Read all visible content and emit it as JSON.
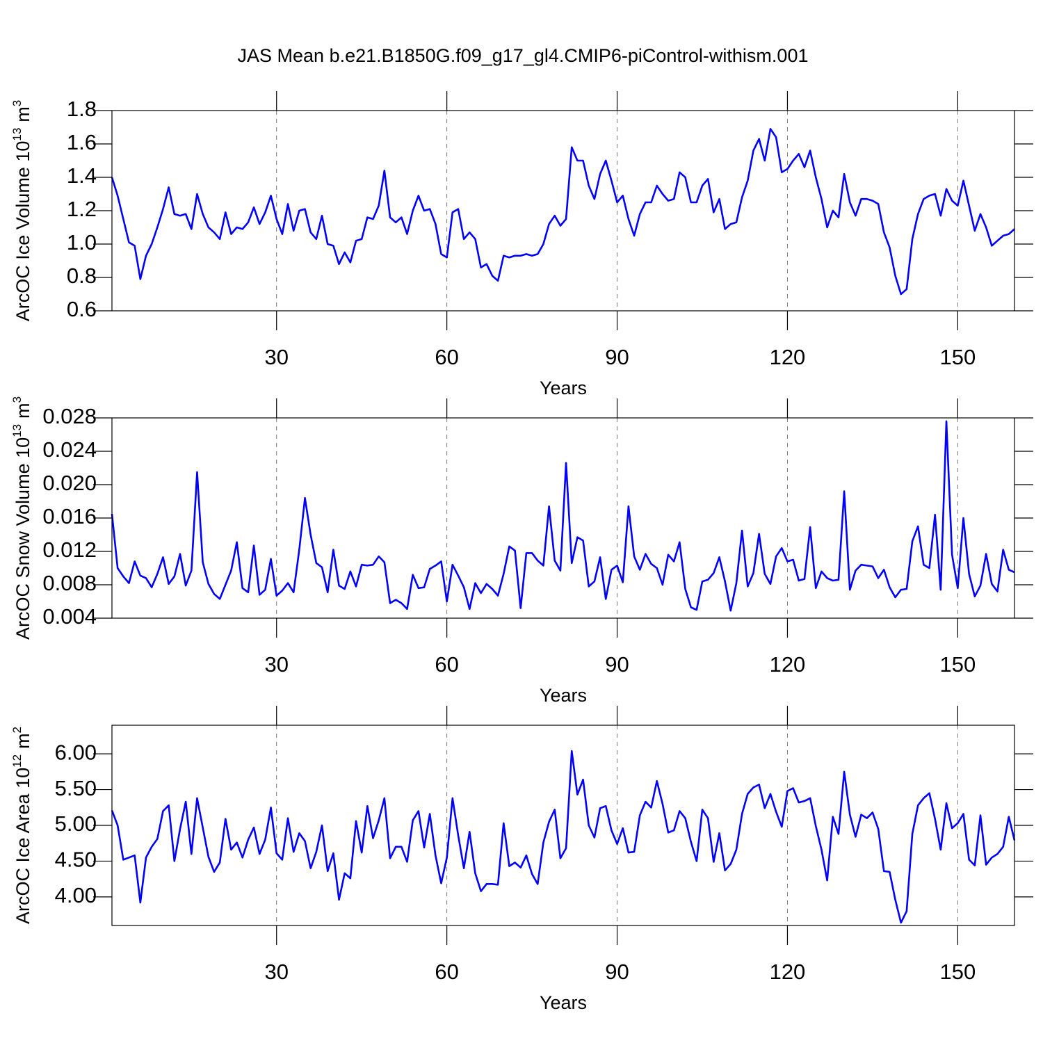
{
  "title": "JAS Mean b.e21.B1850G.f09_g17_gl4.CMIP6-piControl-withism.001",
  "chart_data": [
    {
      "type": "line",
      "xlabel": "Years",
      "ylabel": {
        "text": "ArcOC Ice Volume 10",
        "sup": "13",
        "unit": "m",
        "unit_sup": "3"
      },
      "xlim": [
        1,
        160
      ],
      "xticks": [
        30,
        60,
        90,
        120,
        150
      ],
      "ylim": [
        0.6,
        1.8
      ],
      "yticks": [
        1.8,
        1.6,
        1.4,
        1.2,
        {
          "value": 1.0,
          "label": "1.0"
        },
        0.8,
        0.6
      ],
      "grid": true,
      "color": "#0000ff",
      "x": [
        1,
        2,
        3,
        4,
        5,
        6,
        7,
        8,
        9,
        10,
        11,
        12,
        13,
        14,
        15,
        16,
        17,
        18,
        19,
        20,
        21,
        22,
        23,
        24,
        25,
        26,
        27,
        28,
        29,
        30,
        31,
        32,
        33,
        34,
        35,
        36,
        37,
        38,
        39,
        40,
        41,
        42,
        43,
        44,
        45,
        46,
        47,
        48,
        49,
        50,
        51,
        52,
        53,
        54,
        55,
        56,
        57,
        58,
        59,
        60,
        61,
        62,
        63,
        64,
        65,
        66,
        67,
        68,
        69,
        70,
        71,
        72,
        73,
        74,
        75,
        76,
        77,
        78,
        79,
        80,
        81,
        82,
        83,
        84,
        85,
        86,
        87,
        88,
        89,
        90,
        91,
        92,
        93,
        94,
        95,
        96,
        97,
        98,
        99,
        100,
        101,
        102,
        103,
        104,
        105,
        106,
        107,
        108,
        109,
        110,
        111,
        112,
        113,
        114,
        115,
        116,
        117,
        118,
        119,
        120,
        121,
        122,
        123,
        124,
        125,
        126,
        127,
        128,
        129,
        130,
        131,
        132,
        133,
        134,
        135,
        136,
        137,
        138,
        139,
        140,
        141,
        142,
        143,
        144,
        145,
        146,
        147,
        148,
        149,
        150,
        151,
        152,
        153,
        154,
        155,
        156,
        157,
        158,
        159,
        160
      ],
      "values": [
        1.4,
        1.29,
        1.15,
        1.01,
        0.99,
        0.79,
        0.93,
        1.0,
        1.1,
        1.21,
        1.34,
        1.18,
        1.17,
        1.18,
        1.09,
        1.3,
        1.18,
        1.1,
        1.07,
        1.03,
        1.19,
        1.06,
        1.1,
        1.09,
        1.13,
        1.22,
        1.12,
        1.19,
        1.29,
        1.15,
        1.06,
        1.24,
        1.08,
        1.2,
        1.21,
        1.07,
        1.03,
        1.17,
        1.0,
        0.99,
        0.88,
        0.95,
        0.89,
        1.02,
        1.03,
        1.16,
        1.15,
        1.23,
        1.44,
        1.16,
        1.13,
        1.16,
        1.06,
        1.2,
        1.29,
        1.2,
        1.21,
        1.12,
        0.94,
        0.92,
        1.19,
        1.21,
        1.03,
        1.07,
        1.03,
        0.86,
        0.88,
        0.81,
        0.78,
        0.93,
        0.92,
        0.93,
        0.93,
        0.94,
        0.93,
        0.94,
        1.0,
        1.12,
        1.17,
        1.11,
        1.15,
        1.58,
        1.5,
        1.5,
        1.35,
        1.27,
        1.42,
        1.5,
        1.38,
        1.25,
        1.29,
        1.15,
        1.05,
        1.18,
        1.25,
        1.25,
        1.35,
        1.3,
        1.26,
        1.27,
        1.43,
        1.4,
        1.25,
        1.25,
        1.35,
        1.39,
        1.19,
        1.27,
        1.09,
        1.12,
        1.13,
        1.28,
        1.38,
        1.56,
        1.63,
        1.5,
        1.69,
        1.64,
        1.43,
        1.45,
        1.5,
        1.54,
        1.46,
        1.56,
        1.4,
        1.27,
        1.1,
        1.2,
        1.16,
        1.42,
        1.25,
        1.17,
        1.27,
        1.27,
        1.26,
        1.24,
        1.07,
        0.98,
        0.81,
        0.7,
        0.73,
        1.03,
        1.18,
        1.27,
        1.29,
        1.3,
        1.17,
        1.33,
        1.26,
        1.23,
        1.38,
        1.23,
        1.08,
        1.18,
        1.1,
        0.99,
        1.02,
        1.05,
        1.06,
        1.09
      ]
    },
    {
      "type": "line",
      "xlabel": "Years",
      "ylabel": {
        "text": "ArcOC Snow Volume 10",
        "sup": "13",
        "unit": "m",
        "unit_sup": "3"
      },
      "xlim": [
        1,
        160
      ],
      "xticks": [
        30,
        60,
        90,
        120,
        150
      ],
      "ylim": [
        0.004,
        0.028
      ],
      "yticks": [
        0.028,
        0.024,
        {
          "value": 0.02,
          "label": "0.020"
        },
        0.016,
        0.012,
        0.008,
        0.004
      ],
      "grid": true,
      "color": "#0000ff",
      "x": [
        1,
        2,
        3,
        4,
        5,
        6,
        7,
        8,
        9,
        10,
        11,
        12,
        13,
        14,
        15,
        16,
        17,
        18,
        19,
        20,
        21,
        22,
        23,
        24,
        25,
        26,
        27,
        28,
        29,
        30,
        31,
        32,
        33,
        34,
        35,
        36,
        37,
        38,
        39,
        40,
        41,
        42,
        43,
        44,
        45,
        46,
        47,
        48,
        49,
        50,
        51,
        52,
        53,
        54,
        55,
        56,
        57,
        58,
        59,
        60,
        61,
        62,
        63,
        64,
        65,
        66,
        67,
        68,
        69,
        70,
        71,
        72,
        73,
        74,
        75,
        76,
        77,
        78,
        79,
        80,
        81,
        82,
        83,
        84,
        85,
        86,
        87,
        88,
        89,
        90,
        91,
        92,
        93,
        94,
        95,
        96,
        97,
        98,
        99,
        100,
        101,
        102,
        103,
        104,
        105,
        106,
        107,
        108,
        109,
        110,
        111,
        112,
        113,
        114,
        115,
        116,
        117,
        118,
        119,
        120,
        121,
        122,
        123,
        124,
        125,
        126,
        127,
        128,
        129,
        130,
        131,
        132,
        133,
        134,
        135,
        136,
        137,
        138,
        139,
        140,
        141,
        142,
        143,
        144,
        145,
        146,
        147,
        148,
        149,
        150,
        151,
        152,
        153,
        154,
        155,
        156,
        157,
        158,
        159,
        160
      ],
      "values": [
        0.0165,
        0.01,
        0.009,
        0.0082,
        0.0108,
        0.0091,
        0.0088,
        0.0077,
        0.0093,
        0.0113,
        0.0081,
        0.009,
        0.0117,
        0.0079,
        0.0097,
        0.0215,
        0.0107,
        0.0081,
        0.0069,
        0.0063,
        0.008,
        0.0097,
        0.0131,
        0.0076,
        0.0071,
        0.0127,
        0.0068,
        0.0074,
        0.0111,
        0.0067,
        0.0073,
        0.0082,
        0.0071,
        0.0122,
        0.0184,
        0.014,
        0.0106,
        0.0101,
        0.0071,
        0.0122,
        0.0079,
        0.0075,
        0.0096,
        0.0078,
        0.0104,
        0.0103,
        0.0104,
        0.0114,
        0.0107,
        0.0058,
        0.0062,
        0.0058,
        0.0051,
        0.0092,
        0.0076,
        0.0077,
        0.0099,
        0.0103,
        0.0108,
        0.006,
        0.0104,
        0.0091,
        0.0077,
        0.0051,
        0.0082,
        0.007,
        0.0081,
        0.0075,
        0.0067,
        0.0093,
        0.0126,
        0.0121,
        0.0052,
        0.0118,
        0.0118,
        0.0109,
        0.0103,
        0.0174,
        0.0109,
        0.0097,
        0.0226,
        0.0106,
        0.0137,
        0.0133,
        0.0078,
        0.0084,
        0.0113,
        0.0063,
        0.0098,
        0.0103,
        0.0083,
        0.0174,
        0.0114,
        0.0098,
        0.0117,
        0.0105,
        0.01,
        0.008,
        0.0116,
        0.0108,
        0.0131,
        0.0075,
        0.0053,
        0.005,
        0.0084,
        0.0086,
        0.0094,
        0.0113,
        0.0084,
        0.0049,
        0.0082,
        0.0145,
        0.0078,
        0.0094,
        0.0141,
        0.0093,
        0.0081,
        0.0114,
        0.0124,
        0.0108,
        0.011,
        0.0085,
        0.0087,
        0.0149,
        0.0076,
        0.0096,
        0.0088,
        0.0085,
        0.0086,
        0.0192,
        0.0074,
        0.0097,
        0.0104,
        0.0103,
        0.0102,
        0.0088,
        0.0098,
        0.0077,
        0.0065,
        0.0074,
        0.0075,
        0.0132,
        0.015,
        0.0104,
        0.01,
        0.0164,
        0.0074,
        0.0276,
        0.0116,
        0.0076,
        0.016,
        0.0093,
        0.0066,
        0.0079,
        0.0117,
        0.0081,
        0.0072,
        0.0122,
        0.0098,
        0.0095
      ]
    },
    {
      "type": "line",
      "xlabel": "Years",
      "ylabel": {
        "text": "ArcOC Ice Area 10",
        "sup": "12",
        "unit": "m",
        "unit_sup": "2"
      },
      "xlim": [
        1,
        160
      ],
      "xticks": [
        30,
        60,
        90,
        120,
        150
      ],
      "ylim": [
        3.6,
        6.4
      ],
      "yticks": [
        {
          "value": 6.0,
          "label": "6.00"
        },
        {
          "value": 5.5,
          "label": "5.50"
        },
        {
          "value": 5.0,
          "label": "5.00"
        },
        {
          "value": 4.5,
          "label": "4.50"
        },
        {
          "value": 4.0,
          "label": "4.00"
        }
      ],
      "grid": true,
      "color": "#0000ff",
      "x": [
        1,
        2,
        3,
        4,
        5,
        6,
        7,
        8,
        9,
        10,
        11,
        12,
        13,
        14,
        15,
        16,
        17,
        18,
        19,
        20,
        21,
        22,
        23,
        24,
        25,
        26,
        27,
        28,
        29,
        30,
        31,
        32,
        33,
        34,
        35,
        36,
        37,
        38,
        39,
        40,
        41,
        42,
        43,
        44,
        45,
        46,
        47,
        48,
        49,
        50,
        51,
        52,
        53,
        54,
        55,
        56,
        57,
        58,
        59,
        60,
        61,
        62,
        63,
        64,
        65,
        66,
        67,
        68,
        69,
        70,
        71,
        72,
        73,
        74,
        75,
        76,
        77,
        78,
        79,
        80,
        81,
        82,
        83,
        84,
        85,
        86,
        87,
        88,
        89,
        90,
        91,
        92,
        93,
        94,
        95,
        96,
        97,
        98,
        99,
        100,
        101,
        102,
        103,
        104,
        105,
        106,
        107,
        108,
        109,
        110,
        111,
        112,
        113,
        114,
        115,
        116,
        117,
        118,
        119,
        120,
        121,
        122,
        123,
        124,
        125,
        126,
        127,
        128,
        129,
        130,
        131,
        132,
        133,
        134,
        135,
        136,
        137,
        138,
        139,
        140,
        141,
        142,
        143,
        144,
        145,
        146,
        147,
        148,
        149,
        150,
        151,
        152,
        153,
        154,
        155,
        156,
        157,
        158,
        159,
        160
      ],
      "values": [
        5.21,
        5.0,
        4.52,
        4.55,
        4.58,
        3.92,
        4.55,
        4.7,
        4.81,
        5.2,
        5.28,
        4.5,
        4.95,
        5.33,
        4.6,
        5.38,
        4.97,
        4.56,
        4.35,
        4.48,
        5.09,
        4.66,
        4.76,
        4.55,
        4.8,
        4.97,
        4.6,
        4.8,
        5.25,
        4.61,
        4.52,
        5.1,
        4.63,
        4.89,
        4.78,
        4.4,
        4.63,
        5.0,
        4.36,
        4.61,
        3.96,
        4.33,
        4.26,
        5.06,
        4.62,
        5.27,
        4.82,
        5.07,
        5.38,
        4.54,
        4.7,
        4.7,
        4.49,
        5.07,
        5.2,
        4.69,
        5.16,
        4.58,
        4.19,
        4.55,
        5.38,
        4.86,
        4.4,
        4.91,
        4.33,
        4.08,
        4.18,
        4.18,
        4.17,
        5.03,
        4.43,
        4.48,
        4.41,
        4.58,
        4.32,
        4.18,
        4.76,
        5.05,
        5.22,
        4.54,
        4.68,
        6.04,
        5.43,
        5.64,
        5.0,
        4.83,
        5.24,
        5.27,
        4.93,
        4.74,
        4.96,
        4.62,
        4.63,
        5.14,
        5.33,
        5.25,
        5.62,
        5.3,
        4.9,
        4.93,
        5.2,
        5.1,
        4.77,
        4.5,
        5.22,
        5.1,
        4.49,
        4.89,
        4.37,
        4.46,
        4.66,
        5.16,
        5.44,
        5.53,
        5.57,
        5.24,
        5.44,
        5.19,
        4.98,
        5.48,
        5.52,
        5.32,
        5.34,
        5.38,
        4.99,
        4.66,
        4.23,
        5.12,
        4.88,
        5.75,
        5.15,
        4.84,
        5.15,
        5.1,
        5.18,
        4.95,
        4.36,
        4.35,
        3.96,
        3.64,
        3.8,
        4.88,
        5.28,
        5.38,
        5.45,
        5.09,
        4.66,
        5.31,
        4.96,
        5.03,
        5.16,
        4.52,
        4.44,
        5.14,
        4.45,
        4.55,
        4.6,
        4.7,
        5.12,
        4.79
      ]
    }
  ]
}
